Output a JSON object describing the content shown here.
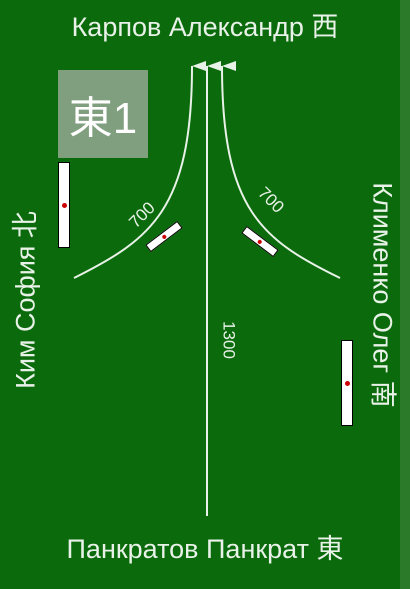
{
  "players": {
    "top": "Карпов Александр 西",
    "bottom": "Панкратов Панкрат 東",
    "left": "Ким София 北",
    "right": "Клименко Олег 南"
  },
  "round_indicator": "東1",
  "distances": {
    "left": "700",
    "right": "700",
    "center": "1300"
  },
  "colors": {
    "table": "#0b6a0b",
    "arrow": "#e8f2e8",
    "dot": "#cc0000"
  }
}
